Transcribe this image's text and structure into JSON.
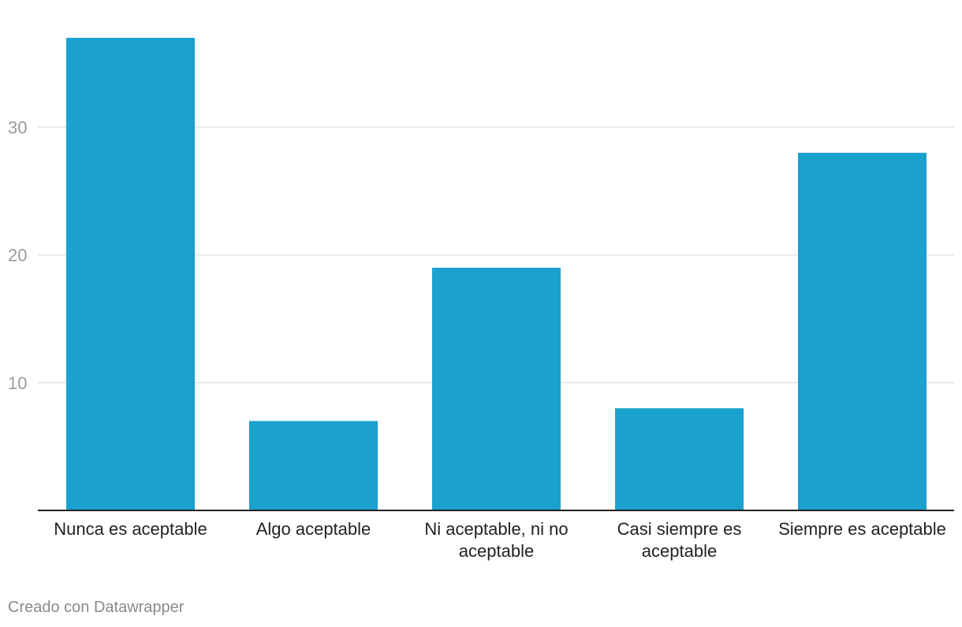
{
  "chart_data": {
    "type": "bar",
    "categories": [
      "Nunca es aceptable",
      "Algo aceptable",
      "Ni aceptable, ni no aceptable",
      "Casi siempre es aceptable",
      "Siempre es aceptable"
    ],
    "values": [
      37,
      7,
      19,
      8,
      28
    ],
    "ylim": [
      0,
      37
    ],
    "yticks": [
      10,
      20,
      30
    ],
    "grid": true,
    "colors": {
      "bar": "#1aa1cd",
      "gridline": "#e3e3e3",
      "baseline": "#222222"
    }
  },
  "footer": {
    "credit": "Creado con Datawrapper"
  }
}
